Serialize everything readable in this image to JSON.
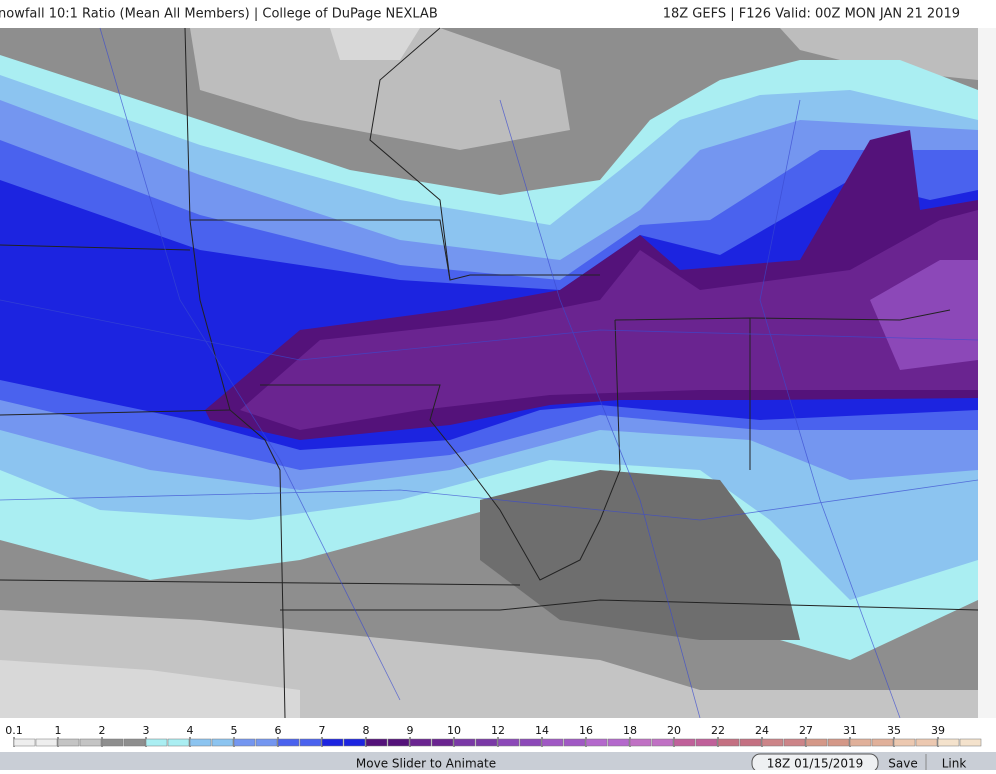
{
  "header": {
    "title": "nowfall 10:1 Ratio (Mean All Members) | College of DuPage NEXLAB",
    "run": "18Z GEFS | F126 Valid: 00Z MON JAN 21 2019"
  },
  "legend": {
    "labels": [
      "0.1",
      "1",
      "2",
      "3",
      "4",
      "5",
      "6",
      "7",
      "8",
      "9",
      "10",
      "12",
      "14",
      "16",
      "18",
      "20",
      "22",
      "24",
      "27",
      "31",
      "35",
      "39"
    ],
    "colors": [
      "#eeeeee",
      "#c4c4c4",
      "#8e8e8e",
      "#aaeef2",
      "#8cc4f0",
      "#7496f0",
      "#4a62ee",
      "#1c24e0",
      "#54127a",
      "#6a2490",
      "#7a38a6",
      "#8c48b8",
      "#a058c4",
      "#b468cc",
      "#c070c4",
      "#c0609a",
      "#c47082",
      "#cc8488",
      "#d49888",
      "#e0b09a",
      "#ecc8b0",
      "#f4e2cc"
    ]
  },
  "controls": {
    "hint": "Move Slider to Animate",
    "run_button": "18Z 01/15/2019",
    "save": "Save",
    "link": "Link"
  }
}
